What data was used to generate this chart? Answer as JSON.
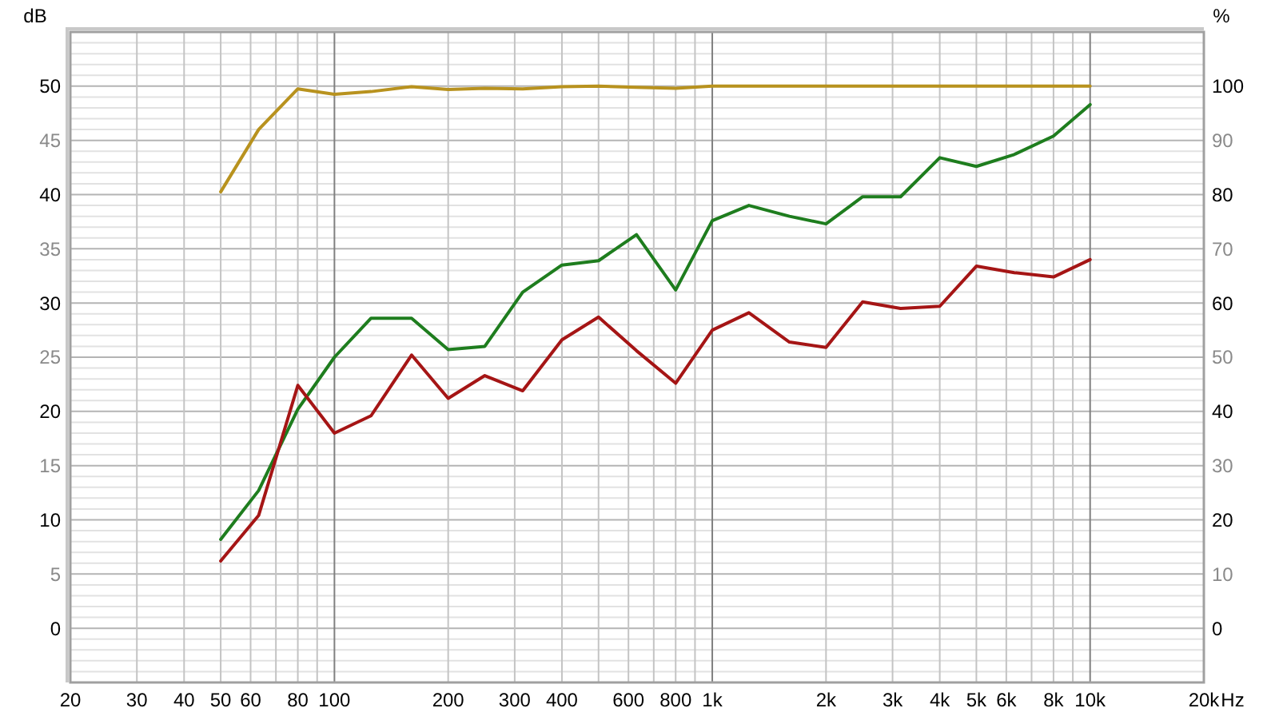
{
  "chart_data": {
    "type": "line",
    "xlabel": "Hz",
    "ylabel": "dB",
    "y2label": "%",
    "x": [
      50,
      63,
      80,
      100,
      125,
      160,
      200,
      250,
      315,
      400,
      500,
      630,
      800,
      1000,
      1250,
      1600,
      2000,
      2500,
      3150,
      4000,
      5000,
      6300,
      8000,
      10000
    ],
    "series": [
      {
        "color": "#b8921e",
        "axis": "y2",
        "values": [
          80.5,
          92,
          99.5,
          98.5,
          99,
          99.9,
          99.4,
          99.6,
          99.5,
          99.9,
          100,
          99.8,
          99.6,
          100,
          100,
          100,
          100,
          100,
          100,
          100,
          100,
          100,
          100,
          100
        ]
      },
      {
        "color": "#1e7d1e",
        "values": [
          8.2,
          12.7,
          20.2,
          25,
          28.6,
          28.6,
          25.7,
          26,
          31,
          33.5,
          33.9,
          36.3,
          31.2,
          37.6,
          39,
          38,
          37.3,
          39.8,
          39.8,
          43.4,
          42.6,
          43.7,
          45.4,
          48.3
        ]
      },
      {
        "color": "#a51515",
        "values": [
          6.2,
          10.4,
          22.4,
          18,
          19.6,
          25.2,
          21.2,
          23.3,
          21.9,
          26.6,
          28.7,
          25.6,
          22.6,
          27.5,
          29.1,
          26.4,
          25.9,
          30.1,
          29.5,
          29.7,
          33.4,
          32.8,
          32.4,
          34
        ]
      }
    ],
    "xlim": [
      20,
      20000
    ],
    "xticks": [
      20,
      30,
      40,
      50,
      60,
      {
        "value": 70,
        "label": null
      },
      80,
      {
        "value": 90,
        "label": null
      },
      100,
      200,
      300,
      400,
      {
        "value": 500,
        "label": null
      },
      600,
      {
        "value": 700,
        "label": null
      },
      800,
      {
        "value": 900,
        "label": null
      },
      {
        "value": 1000,
        "label": "1k"
      },
      {
        "value": 2000,
        "label": "2k"
      },
      {
        "value": 3000,
        "label": "3k"
      },
      {
        "value": 4000,
        "label": "4k"
      },
      {
        "value": 5000,
        "label": "5k"
      },
      {
        "value": 6000,
        "label": "6k"
      },
      {
        "value": 7000,
        "label": null
      },
      {
        "value": 8000,
        "label": "8k"
      },
      {
        "value": 9000,
        "label": null
      },
      {
        "value": 10000,
        "label": "10k"
      },
      {
        "value": 20000,
        "label": "20k"
      }
    ],
    "ylim": [
      -5,
      55
    ],
    "yticks": [
      {
        "value": -4,
        "label": null
      },
      {
        "value": -3,
        "label": null
      },
      {
        "value": -2,
        "label": null
      },
      {
        "value": -1,
        "label": null
      },
      0,
      {
        "value": 1,
        "label": null
      },
      {
        "value": 2,
        "label": null
      },
      {
        "value": 3,
        "label": null
      },
      {
        "value": 4,
        "label": null
      },
      5,
      {
        "value": 6,
        "label": null
      },
      {
        "value": 7,
        "label": null
      },
      {
        "value": 8,
        "label": null
      },
      {
        "value": 9,
        "label": null
      },
      10,
      {
        "value": 11,
        "label": null
      },
      {
        "value": 12,
        "label": null
      },
      {
        "value": 13,
        "label": null
      },
      {
        "value": 14,
        "label": null
      },
      15,
      {
        "value": 16,
        "label": null
      },
      {
        "value": 17,
        "label": null
      },
      {
        "value": 18,
        "label": null
      },
      {
        "value": 19,
        "label": null
      },
      20,
      {
        "value": 21,
        "label": null
      },
      {
        "value": 22,
        "label": null
      },
      {
        "value": 23,
        "label": null
      },
      {
        "value": 24,
        "label": null
      },
      25,
      {
        "value": 26,
        "label": null
      },
      {
        "value": 27,
        "label": null
      },
      {
        "value": 28,
        "label": null
      },
      {
        "value": 29,
        "label": null
      },
      30,
      {
        "value": 31,
        "label": null
      },
      {
        "value": 32,
        "label": null
      },
      {
        "value": 33,
        "label": null
      },
      {
        "value": 34,
        "label": null
      },
      35,
      {
        "value": 36,
        "label": null
      },
      {
        "value": 37,
        "label": null
      },
      {
        "value": 38,
        "label": null
      },
      {
        "value": 39,
        "label": null
      },
      40,
      {
        "value": 41,
        "label": null
      },
      {
        "value": 42,
        "label": null
      },
      {
        "value": 43,
        "label": null
      },
      {
        "value": 44,
        "label": null
      },
      45,
      {
        "value": 46,
        "label": null
      },
      {
        "value": 47,
        "label": null
      },
      {
        "value": 48,
        "label": null
      },
      {
        "value": 49,
        "label": null
      },
      50,
      {
        "value": 51,
        "label": null
      },
      {
        "value": 52,
        "label": null
      },
      {
        "value": 53,
        "label": null
      },
      {
        "value": 54,
        "label": null
      }
    ],
    "y2lim": [
      -10,
      110
    ],
    "y2ticks": [
      0,
      10,
      20,
      30,
      40,
      50,
      60,
      70,
      80,
      90,
      100
    ],
    "log": "x",
    "grid": true,
    "line_style": "solid"
  }
}
